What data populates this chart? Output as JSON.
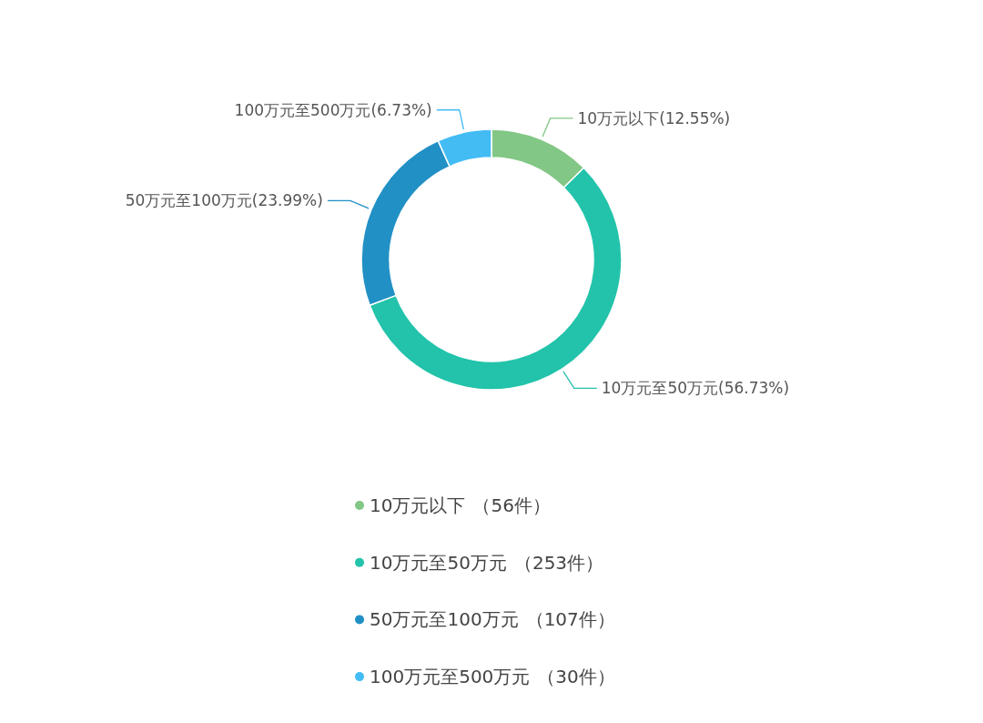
{
  "chart_data": {
    "type": "donut",
    "categories": [
      "10万元以下",
      "10万元至50万元",
      "50万元至100万元",
      "100万元至500万元"
    ],
    "values": [
      12.55,
      56.73,
      23.99,
      6.73
    ],
    "value_labels": [
      "(12.55%)",
      "(56.73%)",
      "(23.99%)",
      "(6.73%)"
    ],
    "colors": [
      "#82c785",
      "#22c3aa",
      "#2190c5",
      "#43bcf4"
    ],
    "legend": "bottom",
    "annotations": [
      "（56件）",
      "（253件）",
      "（107件）",
      "（30件）"
    ]
  }
}
